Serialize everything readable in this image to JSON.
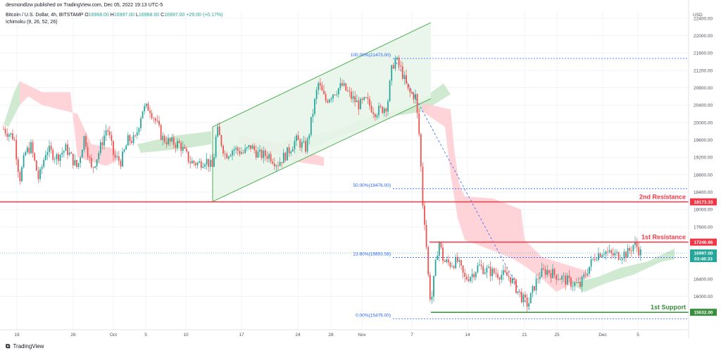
{
  "header": {
    "publisher": "desmondlzw published on TradingView.com, Dec 05, 2022 19:13 UTC-5",
    "symbol": "Bitcoin / U.S. Dollar, 4h, BITSTAMP",
    "o_label": "O",
    "o": "16968.00",
    "h_label": "H",
    "h": "16997.00",
    "l_label": "L",
    "l": "16968.00",
    "c_label": "C",
    "c": "16997.00",
    "change": "+29.00 (+0.17%)",
    "indicator": "Ichimoku (9, 26, 52, 26)"
  },
  "footer": {
    "brand": "TradingView"
  },
  "colors": {
    "up": "#26a69a",
    "down": "#ef5350",
    "cloud_bull": "#c8e6c9",
    "cloud_bear": "#ffcdd2",
    "resistance": "#f23645",
    "support": "#388e3c",
    "fib": "#2962ff",
    "channel_fill": "#e8f5e9",
    "channel_line": "#4caf50"
  },
  "chart_data": {
    "type": "candlestick",
    "currency": "USD",
    "price_axis": [
      "22400.00",
      "22000.00",
      "21600.00",
      "21200.00",
      "20800.00",
      "20400.00",
      "20000.00",
      "19600.00",
      "19200.00",
      "18800.00",
      "18400.00",
      "18000.00",
      "17600.00",
      "16400.00",
      "16000.00"
    ],
    "ylim": [
      15230,
      22560
    ],
    "x_ticks": [
      "19",
      "26",
      "Oct",
      "5",
      "10",
      "17",
      "24",
      "28",
      "Nov",
      "7",
      "14",
      "21",
      "25",
      "Dec",
      "5"
    ],
    "levels": [
      {
        "name": "2nd Resistance",
        "value": 18173.33,
        "tag": "18173.33"
      },
      {
        "name": "1st Resistance",
        "value": 17246.66,
        "tag": "17246.66"
      },
      {
        "name": "1st Support",
        "value": 15632.0,
        "tag": "15632.00"
      }
    ],
    "current_price": {
      "value": 16997.0,
      "tag": "16997.00",
      "countdown": "03:46:33"
    },
    "fibonacci": [
      {
        "label": "100.00%(21473.00)",
        "value": 21473.0
      },
      {
        "label": "50.00%(18476.00)",
        "value": 18476.0
      },
      {
        "label": "23.60%(16893.58)",
        "value": 16893.58
      },
      {
        "label": "0.00%(15479.00)",
        "value": 15479.0
      }
    ],
    "path": [
      [
        5,
        19850
      ],
      [
        20,
        19650
      ],
      [
        28,
        18700
      ],
      [
        36,
        19300
      ],
      [
        44,
        19450
      ],
      [
        55,
        18680
      ],
      [
        66,
        19400
      ],
      [
        80,
        19200
      ],
      [
        94,
        19400
      ],
      [
        110,
        18950
      ],
      [
        120,
        19700
      ],
      [
        130,
        18900
      ],
      [
        140,
        19300
      ],
      [
        152,
        19900
      ],
      [
        162,
        19200
      ],
      [
        172,
        19100
      ],
      [
        182,
        19600
      ],
      [
        192,
        19600
      ],
      [
        202,
        20300
      ],
      [
        212,
        20350
      ],
      [
        222,
        20000
      ],
      [
        230,
        19650
      ],
      [
        240,
        19550
      ],
      [
        255,
        19500
      ],
      [
        270,
        19100
      ],
      [
        282,
        19050
      ],
      [
        292,
        19150
      ],
      [
        302,
        18950
      ],
      [
        308,
        19850
      ],
      [
        320,
        19250
      ],
      [
        332,
        19400
      ],
      [
        346,
        19300
      ],
      [
        356,
        19450
      ],
      [
        368,
        19250
      ],
      [
        382,
        19250
      ],
      [
        394,
        19050
      ],
      [
        408,
        19300
      ],
      [
        420,
        19600
      ],
      [
        435,
        19400
      ],
      [
        445,
        20300
      ],
      [
        452,
        20900
      ],
      [
        462,
        20500
      ],
      [
        474,
        20700
      ],
      [
        486,
        20850
      ],
      [
        498,
        20600
      ],
      [
        510,
        20400
      ],
      [
        520,
        20500
      ],
      [
        532,
        20250
      ],
      [
        542,
        20300
      ],
      [
        550,
        20400
      ],
      [
        557,
        21300
      ],
      [
        562,
        21450
      ],
      [
        570,
        21200
      ],
      [
        580,
        20700
      ],
      [
        590,
        20600
      ],
      [
        596,
        19600
      ],
      [
        600,
        18200
      ],
      [
        604,
        17600
      ],
      [
        608,
        16500
      ],
      [
        612,
        15800
      ],
      [
        617,
        16500
      ],
      [
        623,
        17300
      ],
      [
        630,
        16800
      ],
      [
        640,
        16750
      ],
      [
        650,
        16800
      ],
      [
        660,
        16400
      ],
      [
        670,
        16500
      ],
      [
        680,
        16700
      ],
      [
        690,
        16600
      ],
      [
        700,
        16550
      ],
      [
        712,
        16500
      ],
      [
        724,
        16450
      ],
      [
        736,
        16100
      ],
      [
        744,
        15900
      ],
      [
        750,
        15800
      ],
      [
        758,
        16200
      ],
      [
        766,
        16500
      ],
      [
        776,
        16600
      ],
      [
        788,
        16500
      ],
      [
        800,
        16400
      ],
      [
        812,
        16300
      ],
      [
        824,
        16250
      ],
      [
        834,
        16600
      ],
      [
        846,
        16950
      ],
      [
        858,
        17050
      ],
      [
        868,
        16950
      ],
      [
        878,
        16950
      ],
      [
        892,
        17000
      ],
      [
        900,
        17200
      ],
      [
        904,
        17150
      ],
      [
        910,
        16997
      ]
    ],
    "channel": {
      "lower": [
        [
          302,
          18180
        ],
        [
          612,
          20550
        ]
      ],
      "upper": [
        [
          302,
          19900
        ],
        [
          612,
          22300
        ]
      ]
    },
    "drop_diagonal": [
      [
        560,
        21473
      ],
      [
        752,
        15700
      ]
    ]
  }
}
